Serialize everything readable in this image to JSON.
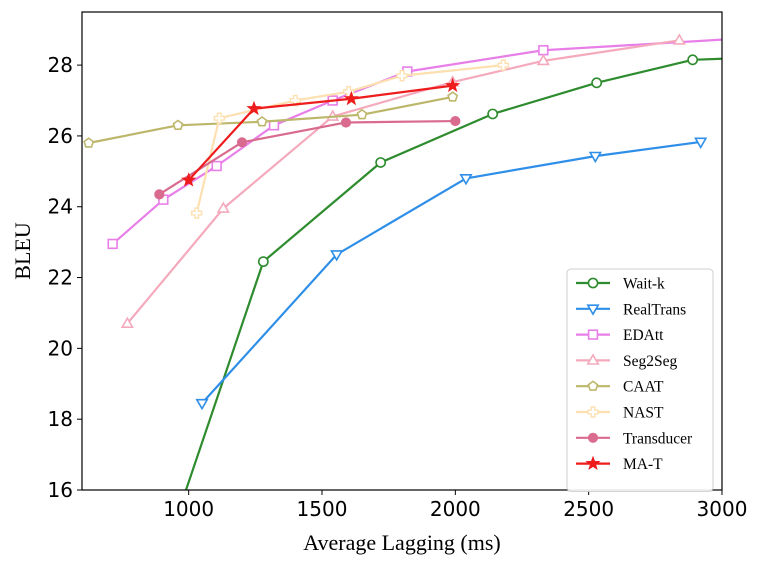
{
  "chart_data": {
    "type": "line",
    "title": "",
    "xlabel": "Average Lagging (ms)",
    "ylabel": "BLEU",
    "xlim": [
      600,
      3000
    ],
    "ylim": [
      16,
      29.5
    ],
    "xticks": [
      1000,
      1500,
      2000,
      2500,
      3000
    ],
    "yticks": [
      16,
      18,
      20,
      22,
      24,
      26,
      28
    ],
    "grid": false,
    "legend_position": "bottom-right",
    "series": [
      {
        "name": "Wait-k",
        "color": "#2e8b2e",
        "marker": "circle-open",
        "x": [
          990,
          1280,
          1720,
          2140,
          2530,
          2890,
          3000
        ],
        "y": [
          16.0,
          22.45,
          25.25,
          26.62,
          27.5,
          28.15,
          28.18
        ]
      },
      {
        "name": "RealTrans",
        "color": "#2f8fe8",
        "marker": "triangle-down-open",
        "x": [
          1050,
          1555,
          2040,
          2525,
          2920
        ],
        "y": [
          18.45,
          22.65,
          24.8,
          25.43,
          25.83
        ]
      },
      {
        "name": "EDAtt",
        "color": "#e87ee8",
        "marker": "square-open",
        "x": [
          715,
          905,
          1105,
          1320,
          1540,
          1820,
          2330,
          3000
        ],
        "y": [
          22.95,
          24.2,
          25.15,
          26.3,
          27.0,
          27.82,
          28.42,
          28.72
        ]
      },
      {
        "name": "Seg2Seg",
        "color": "#f4aabc",
        "marker": "triangle-up-open",
        "x": [
          770,
          1130,
          1540,
          1990,
          2330,
          2840
        ],
        "y": [
          20.7,
          23.95,
          26.55,
          27.52,
          28.12,
          28.7
        ]
      },
      {
        "name": "CAAT",
        "color": "#bdb76b",
        "marker": "pentagon-open",
        "x": [
          625,
          960,
          1275,
          1650,
          1990
        ],
        "y": [
          25.8,
          26.3,
          26.4,
          26.6,
          27.1
        ]
      },
      {
        "name": "NAST",
        "color": "#fde0b0",
        "marker": "plus-open",
        "x": [
          1030,
          1115,
          1400,
          1600,
          1800,
          2180
        ],
        "y": [
          23.82,
          26.5,
          27.0,
          27.25,
          27.7,
          28.0
        ]
      },
      {
        "name": "Transducer",
        "color": "#d96b8e",
        "marker": "circle-filled",
        "x": [
          890,
          1200,
          1590,
          2000
        ],
        "y": [
          24.35,
          25.82,
          26.38,
          26.42
        ]
      },
      {
        "name": "MA-T",
        "color": "#ee1c1c",
        "marker": "star-filled",
        "x": [
          1000,
          1245,
          1610,
          1990
        ],
        "y": [
          24.75,
          26.77,
          27.05,
          27.42
        ]
      }
    ]
  }
}
